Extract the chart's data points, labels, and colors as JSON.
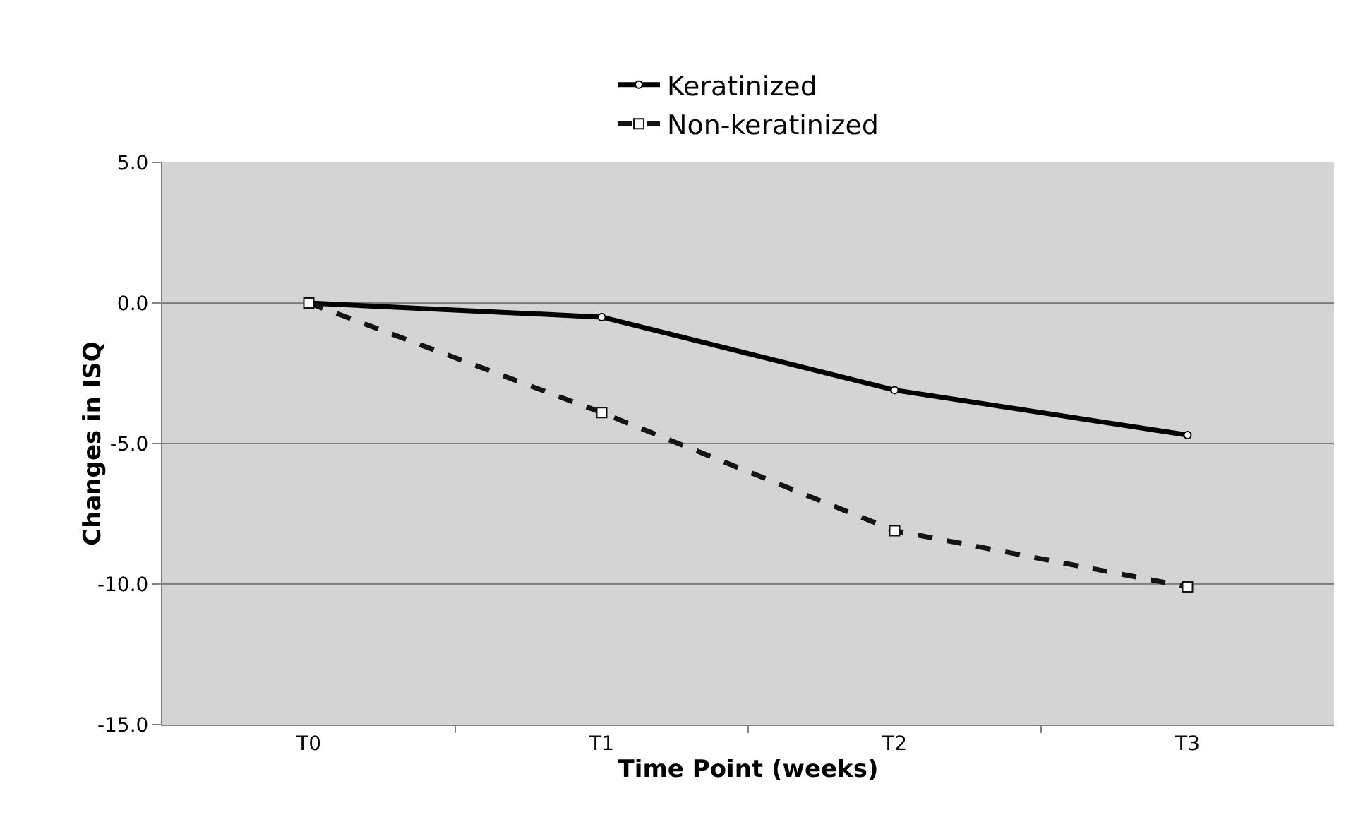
{
  "chart_data": {
    "type": "line",
    "xlabel": "Time Point (weeks)",
    "ylabel": "Changes in ISQ",
    "categories": [
      "T0",
      "T1",
      "T2",
      "T3"
    ],
    "series": [
      {
        "name": "Keratinized",
        "color": "#000000",
        "values": [
          0,
          -0.5,
          -3.1,
          -4.7
        ],
        "line_style": "solid",
        "marker": "circle"
      },
      {
        "name": "Non-keratinized",
        "color": "#141414",
        "values": [
          0,
          -3.9,
          -8.1,
          -10.1
        ],
        "line_style": "dashed",
        "marker": "square"
      }
    ],
    "ylim": [
      -15,
      5
    ],
    "yticks": [
      {
        "value": -15,
        "label": "-15.0"
      },
      {
        "value": -10,
        "label": "-10.0"
      },
      {
        "value": -5,
        "label": "-5.0"
      },
      {
        "value": 0,
        "label": "0.0"
      },
      {
        "value": 5,
        "label": "5.0"
      }
    ],
    "grid": "y",
    "legend": "top"
  }
}
